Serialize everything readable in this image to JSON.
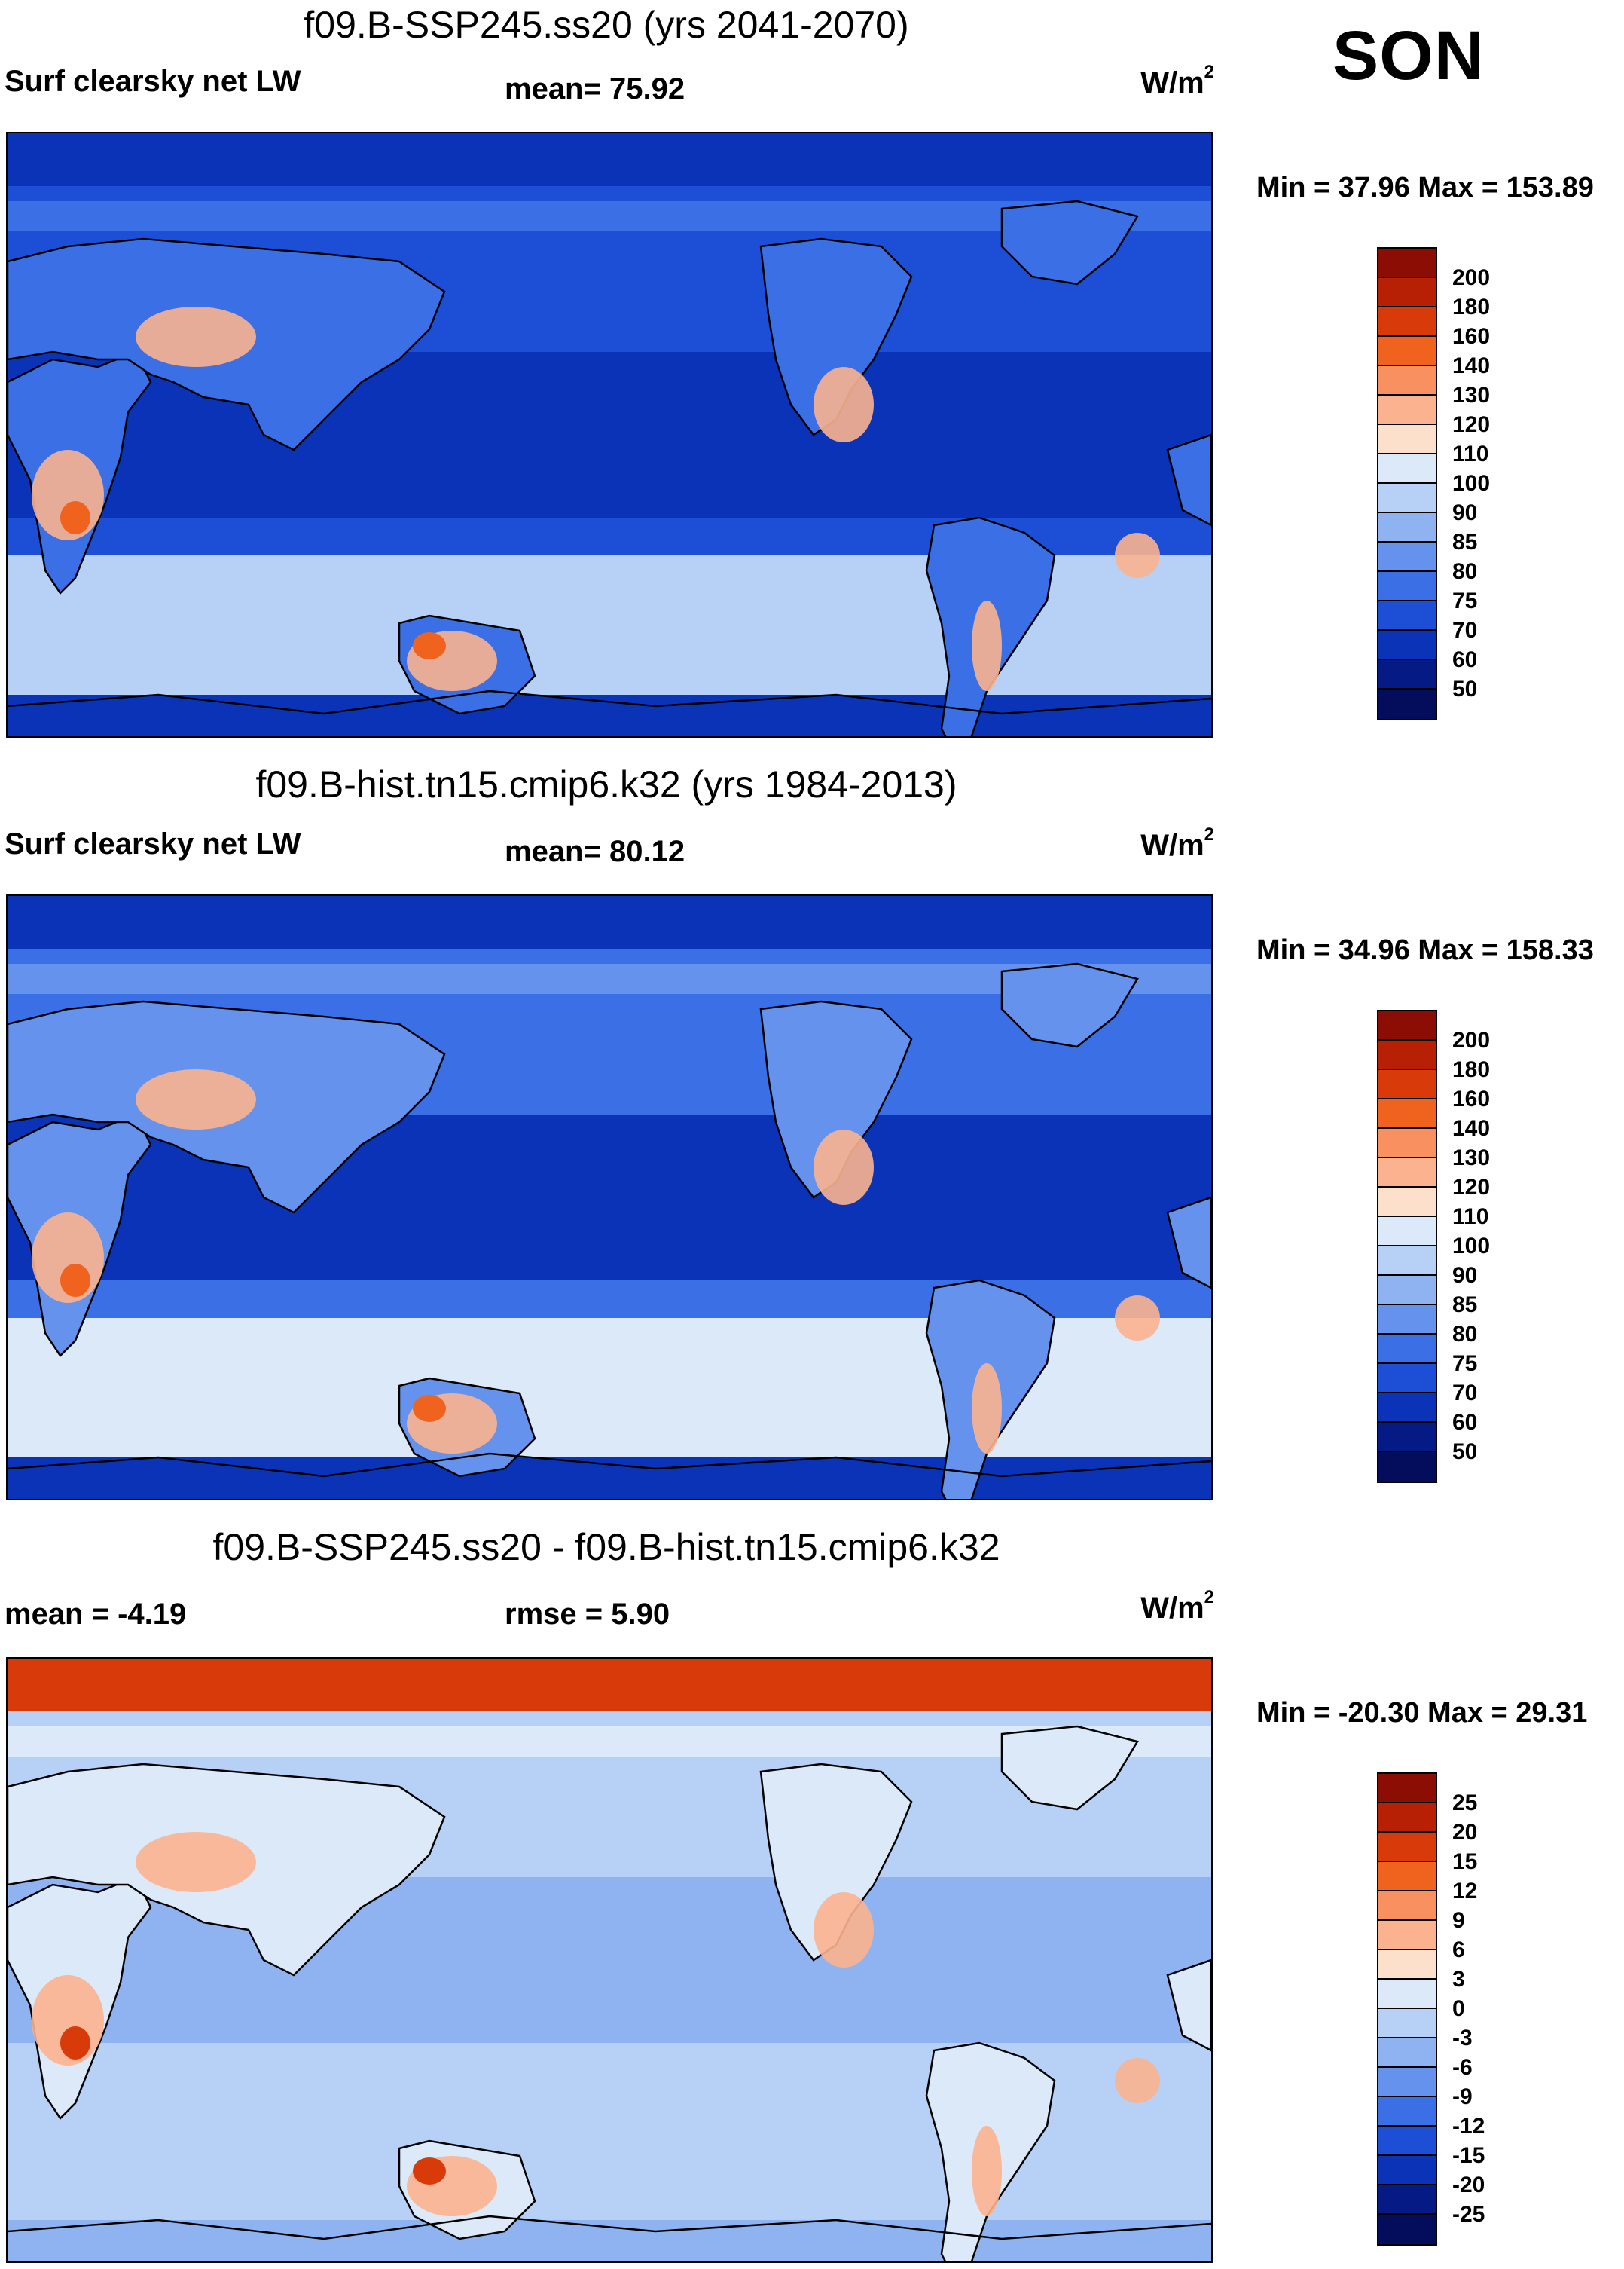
{
  "season": "SON",
  "panels": [
    {
      "title": "f09.B-SSP245.ss20 (yrs 2041-2070)",
      "left_text": "Surf clearsky net LW",
      "mid_text": "mean=  75.92",
      "units": "W/m",
      "units_sup": "2",
      "minmax": "Min =  37.96 Max = 153.89",
      "colorbar": {
        "labels": [
          "200",
          "180",
          "160",
          "140",
          "130",
          "120",
          "110",
          "100",
          "90",
          "85",
          "80",
          "75",
          "70",
          "60",
          "50"
        ],
        "colors": [
          "#8c0d04",
          "#b82006",
          "#d83a0a",
          "#f0631e",
          "#f89060",
          "#fbb28e",
          "#fde0cc",
          "#dbe9f9",
          "#b7d1f6",
          "#8fb3f1",
          "#6492ec",
          "#3b6fe5",
          "#1d4fd6",
          "#0b33b8",
          "#061a86",
          "#040d5c"
        ]
      },
      "map": {
        "ocean": "#1d4fd6",
        "deep": "#0b33b8",
        "mid": "#3b6fe5",
        "band": "#b7d1f6",
        "hot": "#f0631e",
        "warm": "#fbb28e"
      }
    },
    {
      "title": "f09.B-hist.tn15.cmip6.k32 (yrs 1984-2013)",
      "left_text": "Surf clearsky net LW",
      "mid_text": "mean=  80.12",
      "units": "W/m",
      "units_sup": "2",
      "minmax": "Min =  34.96 Max = 158.33",
      "colorbar": {
        "labels": [
          "200",
          "180",
          "160",
          "140",
          "130",
          "120",
          "110",
          "100",
          "90",
          "85",
          "80",
          "75",
          "70",
          "60",
          "50"
        ],
        "colors": [
          "#8c0d04",
          "#b82006",
          "#d83a0a",
          "#f0631e",
          "#f89060",
          "#fbb28e",
          "#fde0cc",
          "#dbe9f9",
          "#b7d1f6",
          "#8fb3f1",
          "#6492ec",
          "#3b6fe5",
          "#1d4fd6",
          "#0b33b8",
          "#061a86",
          "#040d5c"
        ]
      },
      "map": {
        "ocean": "#3b6fe5",
        "deep": "#0b33b8",
        "mid": "#6492ec",
        "band": "#dbe9f9",
        "hot": "#f0631e",
        "warm": "#fbb28e"
      }
    },
    {
      "title": "f09.B-SSP245.ss20 - f09.B-hist.tn15.cmip6.k32",
      "left_text": "mean =  -4.19",
      "mid_text": "rmse =    5.90",
      "units": "W/m",
      "units_sup": "2",
      "minmax": "Min = -20.30 Max =  29.31",
      "colorbar": {
        "labels": [
          "25",
          "20",
          "15",
          "12",
          "9",
          "6",
          "3",
          "0",
          "-3",
          "-6",
          "-9",
          "-12",
          "-15",
          "-20",
          "-25"
        ],
        "colors": [
          "#8c0d04",
          "#b82006",
          "#d83a0a",
          "#f0631e",
          "#f89060",
          "#fbb28e",
          "#fde0cc",
          "#dbe9f9",
          "#b7d1f6",
          "#8fb3f1",
          "#6492ec",
          "#3b6fe5",
          "#1d4fd6",
          "#0b33b8",
          "#061a86",
          "#040d5c"
        ]
      },
      "map": {
        "ocean": "#b7d1f6",
        "deep": "#8fb3f1",
        "mid": "#dbe9f9",
        "band": "#b7d1f6",
        "hot": "#d83a0a",
        "warm": "#fbb28e"
      }
    }
  ]
}
